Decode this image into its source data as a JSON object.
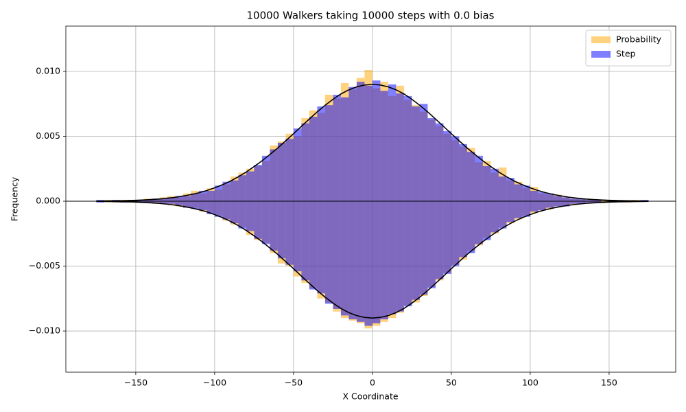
{
  "chart_data": {
    "type": "histogram",
    "title": "10000 Walkers taking 10000 steps with 0.0 bias",
    "x_label": "X Coordinate",
    "y_label": "Frequency",
    "bins": [
      -175,
      -170,
      -165,
      -160,
      -155,
      -150,
      -145,
      -140,
      -135,
      -130,
      -125,
      -120,
      -115,
      -110,
      -105,
      -100,
      -95,
      -90,
      -85,
      -80,
      -75,
      -70,
      -65,
      -60,
      -55,
      -50,
      -45,
      -40,
      -35,
      -30,
      -25,
      -20,
      -15,
      -10,
      -5,
      0,
      5,
      10,
      15,
      20,
      25,
      30,
      35,
      40,
      45,
      50,
      55,
      60,
      65,
      70,
      75,
      80,
      85,
      90,
      95,
      100,
      105,
      110,
      115,
      120,
      125,
      130,
      135,
      140,
      145,
      150,
      155,
      160,
      165,
      170,
      175
    ],
    "alpha": 0.5,
    "series": [
      {
        "name": "Probability",
        "color": "#ffa500",
        "values": [
          0,
          0.0001,
          0,
          0.0001,
          0.0001,
          0.0001,
          0.0002,
          0.0001,
          0.0003,
          0.0004,
          0.0003,
          0.0006,
          0.0008,
          0.0006,
          0.001,
          0.0009,
          0.0013,
          0.0019,
          0.0022,
          0.0025,
          0.0027,
          0.0031,
          0.0043,
          0.0046,
          0.0052,
          0.005,
          0.0064,
          0.007,
          0.0068,
          0.0082,
          0.0079,
          0.0091,
          0.0086,
          0.0095,
          0.0101,
          0.0087,
          0.0092,
          0.0081,
          0.0089,
          0.0078,
          0.0074,
          0.0069,
          0.0063,
          0.0058,
          0.0052,
          0.0047,
          0.0042,
          0.0041,
          0.003,
          0.0031,
          0.0022,
          0.0026,
          0.0016,
          0.0015,
          0.001,
          0.0011,
          0.0006,
          0.0005,
          0.0005,
          0.0003,
          0.0002,
          0.0002,
          0.0001,
          0.0001,
          0.0001,
          0,
          0.0001,
          0,
          0.0001,
          0
        ]
      },
      {
        "name": "Step",
        "color": "#0000ff",
        "values": [
          0.0001,
          0,
          0.0001,
          0,
          0.0001,
          0.0001,
          0.0001,
          0.0002,
          0.0002,
          0.0003,
          0.0004,
          0.0004,
          0.0006,
          0.0008,
          0.0008,
          0.0012,
          0.0015,
          0.0016,
          0.002,
          0.0023,
          0.0028,
          0.0035,
          0.004,
          0.0045,
          0.0048,
          0.0056,
          0.006,
          0.0065,
          0.0073,
          0.0074,
          0.0082,
          0.008,
          0.0088,
          0.0092,
          0.0089,
          0.0093,
          0.0085,
          0.009,
          0.0083,
          0.0081,
          0.0073,
          0.0075,
          0.0064,
          0.006,
          0.0054,
          0.005,
          0.0044,
          0.0038,
          0.0035,
          0.0027,
          0.0025,
          0.0019,
          0.0018,
          0.0013,
          0.0012,
          0.0008,
          0.0007,
          0.0006,
          0.0004,
          0.0003,
          0.0002,
          0.0002,
          0.0001,
          0.0001,
          0,
          0.0001,
          0,
          0,
          0,
          0.0001
        ]
      },
      {
        "color": "#ffa500",
        "values": [
          0,
          0,
          -0.0001,
          0,
          -0.0001,
          -0.0001,
          -0.0001,
          -0.0002,
          -0.0002,
          -0.0003,
          -0.0004,
          -0.0005,
          -0.0005,
          -0.0008,
          -0.0009,
          -0.0011,
          -0.0015,
          -0.0018,
          -0.002,
          -0.0026,
          -0.003,
          -0.0032,
          -0.004,
          -0.0048,
          -0.005,
          -0.0058,
          -0.0063,
          -0.0067,
          -0.0075,
          -0.0078,
          -0.0085,
          -0.009,
          -0.0092,
          -0.0094,
          -0.0098,
          -0.0096,
          -0.0093,
          -0.009,
          -0.0086,
          -0.008,
          -0.0078,
          -0.0073,
          -0.0066,
          -0.0061,
          -0.0055,
          -0.0049,
          -0.0045,
          -0.0038,
          -0.0034,
          -0.0028,
          -0.0025,
          -0.002,
          -0.0017,
          -0.0014,
          -0.0011,
          -0.0009,
          -0.0007,
          -0.0006,
          -0.0004,
          -0.0003,
          -0.0003,
          -0.0002,
          -0.0001,
          -0.0001,
          -0.0001,
          0,
          0,
          -0.0001,
          0,
          0
        ]
      },
      {
        "color": "#0000ff",
        "values": [
          -0.0001,
          0,
          0,
          -0.0001,
          0,
          -0.0001,
          -0.0001,
          -0.0001,
          -0.0002,
          -0.0002,
          -0.0003,
          -0.0005,
          -0.0006,
          -0.0007,
          -0.001,
          -0.0012,
          -0.0014,
          -0.0017,
          -0.0021,
          -0.0023,
          -0.0029,
          -0.0033,
          -0.0038,
          -0.0044,
          -0.0049,
          -0.0054,
          -0.0061,
          -0.0068,
          -0.0071,
          -0.0079,
          -0.0083,
          -0.0088,
          -0.0091,
          -0.0093,
          -0.0096,
          -0.0094,
          -0.0091,
          -0.0087,
          -0.0085,
          -0.0081,
          -0.0076,
          -0.0072,
          -0.0067,
          -0.006,
          -0.0056,
          -0.005,
          -0.0043,
          -0.004,
          -0.0033,
          -0.003,
          -0.0024,
          -0.0021,
          -0.0016,
          -0.0013,
          -0.0012,
          -0.0008,
          -0.0007,
          -0.0005,
          -0.0004,
          -0.0004,
          -0.0002,
          -0.0002,
          -0.0001,
          -0.0001,
          0,
          -0.0001,
          0,
          0,
          0,
          0
        ]
      }
    ],
    "curve_x": [
      -175,
      -170,
      -165,
      -160,
      -155,
      -150,
      -145,
      -140,
      -135,
      -130,
      -125,
      -120,
      -115,
      -110,
      -105,
      -100,
      -95,
      -90,
      -85,
      -80,
      -75,
      -70,
      -65,
      -60,
      -55,
      -50,
      -45,
      -40,
      -35,
      -30,
      -25,
      -20,
      -15,
      -10,
      -5,
      0,
      5,
      10,
      15,
      20,
      25,
      30,
      35,
      40,
      45,
      50,
      55,
      60,
      65,
      70,
      75,
      80,
      85,
      90,
      95,
      100,
      105,
      110,
      115,
      120,
      125,
      130,
      135,
      140,
      145,
      150,
      155,
      160,
      165,
      170,
      175
    ],
    "curves": [
      {
        "color": "#000000",
        "values": [
          1e-05,
          2e-05,
          3e-05,
          4e-05,
          5e-05,
          7e-05,
          0.0001,
          0.00013,
          0.00017,
          0.00023,
          0.0003,
          0.0004,
          0.00051,
          0.00065,
          0.00082,
          0.00103,
          0.00127,
          0.00155,
          0.00188,
          0.00225,
          0.00267,
          0.00311,
          0.0036,
          0.0041,
          0.00465,
          0.0052,
          0.00577,
          0.00633,
          0.00688,
          0.00739,
          0.00785,
          0.00826,
          0.00858,
          0.00881,
          0.00895,
          0.009,
          0.00895,
          0.00881,
          0.00858,
          0.00826,
          0.00785,
          0.00739,
          0.00688,
          0.00633,
          0.00577,
          0.0052,
          0.00465,
          0.0041,
          0.0036,
          0.00311,
          0.00267,
          0.00225,
          0.00188,
          0.00155,
          0.00127,
          0.00103,
          0.00082,
          0.00065,
          0.00051,
          0.0004,
          0.0003,
          0.00023,
          0.00017,
          0.00013,
          0.0001,
          7e-05,
          5e-05,
          4e-05,
          3e-05,
          2e-05,
          1e-05
        ]
      },
      {
        "color": "#000000",
        "values": [
          -1e-05,
          -2e-05,
          -3e-05,
          -4e-05,
          -5e-05,
          -7e-05,
          -0.0001,
          -0.00013,
          -0.00017,
          -0.00023,
          -0.0003,
          -0.0004,
          -0.00051,
          -0.00065,
          -0.00082,
          -0.00103,
          -0.00127,
          -0.00155,
          -0.00188,
          -0.00225,
          -0.00267,
          -0.00311,
          -0.0036,
          -0.0041,
          -0.00465,
          -0.0052,
          -0.00577,
          -0.00633,
          -0.00688,
          -0.00739,
          -0.00785,
          -0.00826,
          -0.00858,
          -0.00881,
          -0.00895,
          -0.009,
          -0.00895,
          -0.00881,
          -0.00858,
          -0.00826,
          -0.00785,
          -0.00739,
          -0.00688,
          -0.00633,
          -0.00577,
          -0.0052,
          -0.00465,
          -0.0041,
          -0.0036,
          -0.00311,
          -0.00267,
          -0.00225,
          -0.00188,
          -0.00155,
          -0.00127,
          -0.00103,
          -0.00082,
          -0.00065,
          -0.00051,
          -0.0004,
          -0.0003,
          -0.00023,
          -0.00017,
          -0.00013,
          -0.0001,
          -7e-05,
          -5e-05,
          -4e-05,
          -3e-05,
          -2e-05,
          -1e-05
        ]
      }
    ],
    "hline": 0,
    "xlim": [
      -194.3,
      192.2
    ],
    "ylim": [
      -0.01317,
      0.01349
    ],
    "xticks": [
      {
        "value": -150,
        "label": "−150"
      },
      {
        "value": -100,
        "label": "−100"
      },
      {
        "value": -50,
        "label": "−50"
      },
      0,
      50,
      100,
      150
    ],
    "yticks": [
      {
        "value": -0.01,
        "label": "−0.010"
      },
      {
        "value": -0.005,
        "label": "−0.005"
      },
      {
        "value": 0,
        "label": "0.000"
      },
      {
        "value": 0.005,
        "label": "0.005"
      },
      {
        "value": 0.01,
        "label": "0.010"
      }
    ],
    "grid": true,
    "legend": "upper right"
  }
}
